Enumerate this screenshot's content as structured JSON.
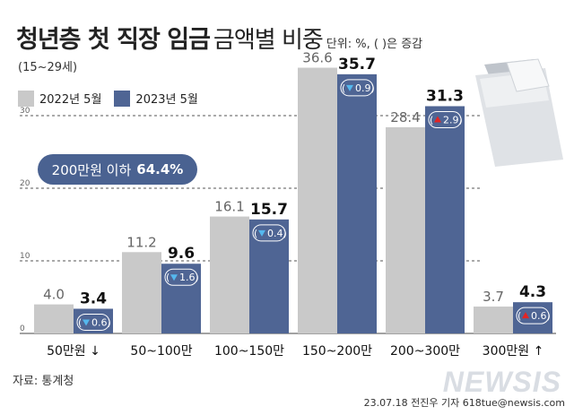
{
  "title": {
    "main": "청년층 첫 직장 임금",
    "sub": "금액별 비중",
    "unit": "단위: %, ( )은 증감"
  },
  "population": "(15~29세)",
  "summary": {
    "label": "200만원 이하",
    "value": "64.4%"
  },
  "source": "자료: 통계청",
  "credit": "23.07.18 전진우 기자 618tue@newsis.com",
  "watermark": "NEWSIS",
  "colors": {
    "y2022": "#c9c9c9",
    "y2023": "#4f6594",
    "down": "#55b8ee",
    "up": "#e32424",
    "badge_bg": "#4f6594"
  },
  "chart_data": {
    "type": "bar",
    "title": "청년층 첫 직장 임금 금액별 비중",
    "categories": [
      "50만원 ↓",
      "50~100만",
      "100~150만",
      "150~200만",
      "200~300만",
      "300만원 ↑"
    ],
    "series": [
      {
        "name": "2022년 5월",
        "values": [
          4.0,
          11.2,
          16.1,
          36.6,
          28.4,
          3.7
        ]
      },
      {
        "name": "2023년 5월",
        "values": [
          3.4,
          9.6,
          15.7,
          35.7,
          31.3,
          4.3
        ]
      }
    ],
    "changes": [
      {
        "direction": "down",
        "value": "0.6"
      },
      {
        "direction": "down",
        "value": "1.6"
      },
      {
        "direction": "down",
        "value": "0.4"
      },
      {
        "direction": "down",
        "value": "0.9"
      },
      {
        "direction": "up",
        "value": "2.9"
      },
      {
        "direction": "up",
        "value": "0.6"
      }
    ],
    "yticks": [
      0,
      10,
      20,
      30
    ],
    "ylim": [
      0,
      38
    ],
    "grid": true,
    "legend": "top-left"
  }
}
